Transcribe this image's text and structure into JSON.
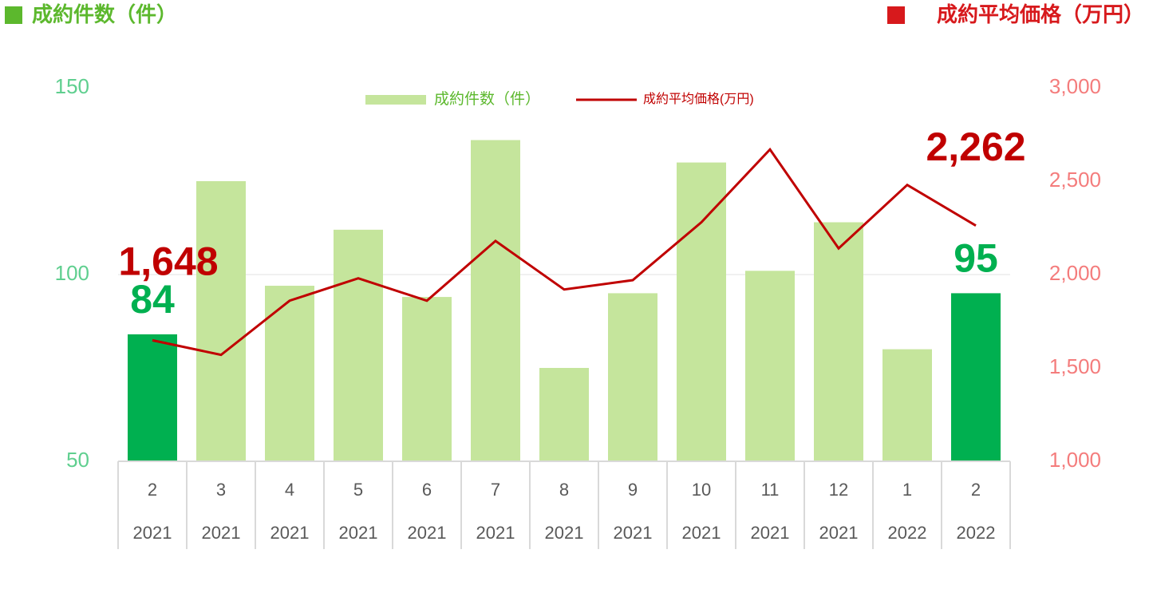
{
  "chart_data": {
    "type": "bar-line",
    "left_header": "成約件数（件）",
    "right_header": "成約平均価格（万円）",
    "categories": [
      "2",
      "3",
      "4",
      "5",
      "6",
      "7",
      "8",
      "9",
      "10",
      "11",
      "12",
      "1",
      "2"
    ],
    "category_groups": [
      "2021",
      "2021",
      "2021",
      "2021",
      "2021",
      "2021",
      "2021",
      "2021",
      "2021",
      "2021",
      "2021",
      "2022",
      "2022"
    ],
    "series": [
      {
        "name": "成約件数（件）",
        "type": "bar",
        "color": "#c5e59c",
        "colors": [
          "#00b050",
          "#c5e59c",
          "#c5e59c",
          "#c5e59c",
          "#c5e59c",
          "#c5e59c",
          "#c5e59c",
          "#c5e59c",
          "#c5e59c",
          "#c5e59c",
          "#c5e59c",
          "#c5e59c",
          "#00b050"
        ],
        "values": [
          84,
          125,
          97,
          112,
          94,
          136,
          75,
          95,
          130,
          101,
          114,
          80,
          95
        ],
        "labeled": [
          0,
          12
        ]
      },
      {
        "name": "成約平均価格(万円)",
        "type": "line",
        "axis": "y2",
        "color": "#c00000",
        "values": [
          1648,
          1570,
          1860,
          1980,
          1860,
          2180,
          1920,
          1970,
          2280,
          2670,
          2140,
          2480,
          2262
        ],
        "value_labels": [
          "1,648",
          null,
          null,
          null,
          null,
          null,
          null,
          null,
          null,
          null,
          null,
          null,
          "2,262"
        ]
      }
    ],
    "ylim": [
      50,
      150
    ],
    "yticks": [
      50,
      100,
      150
    ],
    "y2lim": [
      1000,
      3000
    ],
    "y2ticks": [
      {
        "value": 1000,
        "label": "1,000"
      },
      {
        "value": 1500,
        "label": "1,500"
      },
      {
        "value": 2000,
        "label": "2,000"
      },
      {
        "value": 2500,
        "label": "2,500"
      },
      {
        "value": 3000,
        "label": "3,000"
      }
    ],
    "grid": true,
    "legend": "top"
  }
}
